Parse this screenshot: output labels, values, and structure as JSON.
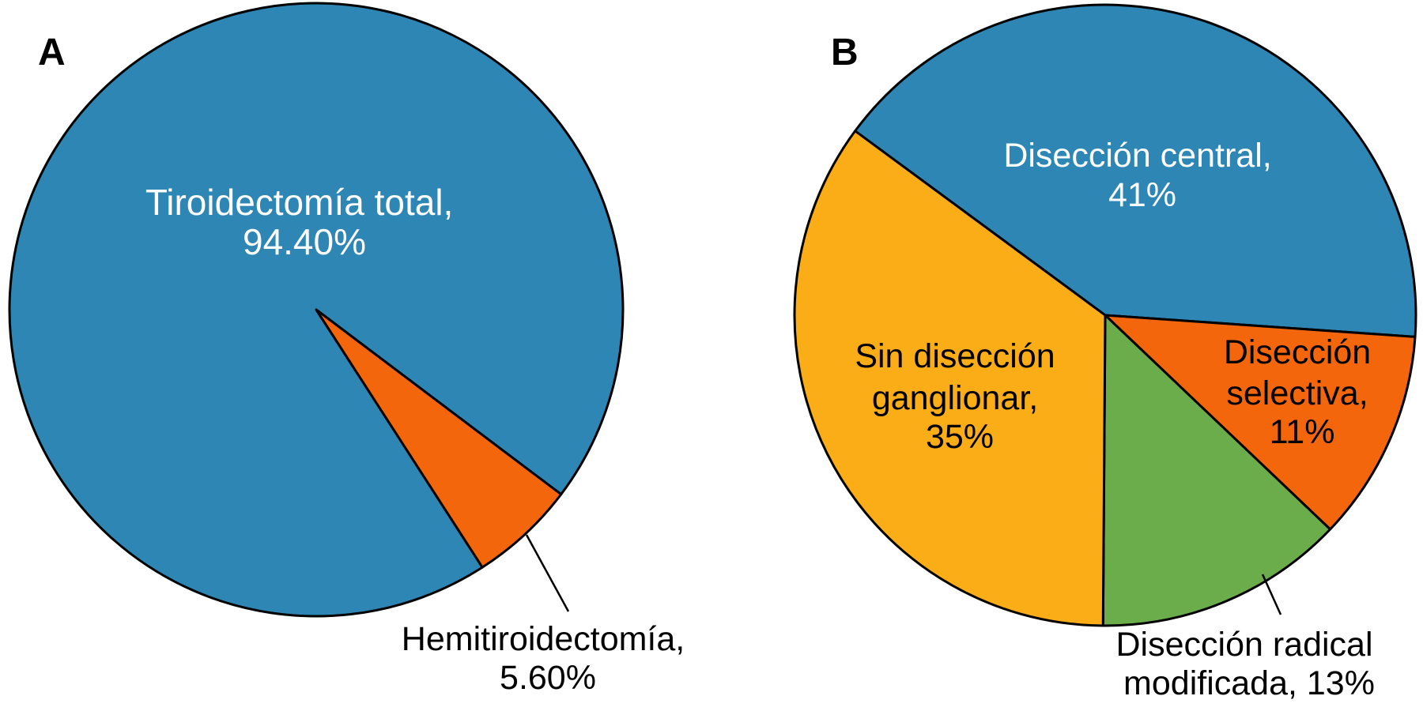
{
  "chart_data": [
    {
      "type": "pie",
      "panel_label": "A",
      "start_angle_deg": 147.2,
      "stroke_color": "#000000",
      "slices": [
        {
          "name": "Tiroidectomía total",
          "value_pct": 94.4,
          "color": "#2E86B5",
          "label_lines": [
            "Tiroidectomía total,",
            "94.40%"
          ],
          "label_placement": "inside",
          "label_color": "#FFFFFF"
        },
        {
          "name": "Hemitiroidectomía",
          "value_pct": 5.6,
          "color": "#F4660B",
          "label_lines": [
            "Hemitiroidectomía,",
            "5.60%"
          ],
          "label_placement": "outside-callout",
          "label_color": "#000000"
        }
      ]
    },
    {
      "type": "pie",
      "panel_label": "B",
      "start_angle_deg": -53.6,
      "stroke_color": "#000000",
      "slices": [
        {
          "name": "Disección central",
          "value_pct": 41,
          "color": "#2E86B5",
          "label_lines": [
            "Disección central,",
            "41%"
          ],
          "label_placement": "inside",
          "label_color": "#FFFFFF"
        },
        {
          "name": "Disección selectiva",
          "value_pct": 11,
          "color": "#F4660B",
          "label_lines": [
            "Disección",
            "selectiva,",
            "11%"
          ],
          "label_placement": "inside",
          "label_color": "#000000"
        },
        {
          "name": "Disección radical modificada",
          "value_pct": 13,
          "color": "#6CAD4B",
          "label_lines": [
            "Disección radical",
            "modificada, 13%"
          ],
          "label_placement": "outside-callout",
          "label_color": "#000000"
        },
        {
          "name": "Sin disección ganglionar",
          "value_pct": 35,
          "color": "#FBAD18",
          "label_lines": [
            "Sin disección",
            "ganglionar,",
            "35%"
          ],
          "label_placement": "inside",
          "label_color": "#000000"
        }
      ]
    }
  ]
}
